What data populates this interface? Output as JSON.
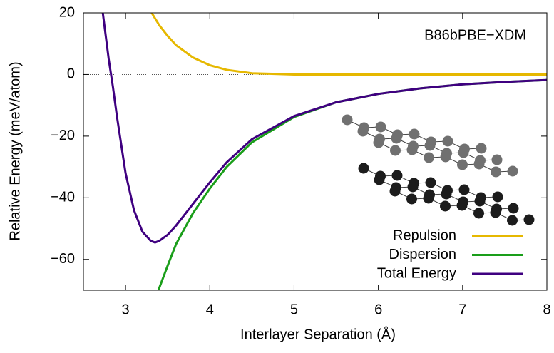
{
  "chart_data": {
    "type": "line",
    "annotation": "B86bPBE−XDM",
    "xlabel": "Interlayer Separation (Å)",
    "ylabel": "Relative Energy (meV/atom)",
    "xlim": [
      2.5,
      8
    ],
    "ylim": [
      -70,
      20
    ],
    "xticks": [
      3,
      4,
      5,
      6,
      7,
      8
    ],
    "yticks": [
      20,
      0,
      {
        "value": -20,
        "label": "−20"
      },
      {
        "value": -40,
        "label": "−40"
      },
      {
        "value": -60,
        "label": "−60"
      }
    ],
    "zero_line": true,
    "legend": "lower right",
    "series": [
      {
        "name": "Repulsion",
        "color": "#e6b800",
        "x": [
          3.31,
          3.4,
          3.5,
          3.6,
          3.8,
          4.0,
          4.2,
          4.5,
          5.0,
          5.5,
          6.0,
          6.5,
          7.0,
          7.5,
          8.0
        ],
        "values": [
          20,
          16,
          12.5,
          9.5,
          5.5,
          3,
          1.5,
          0.4,
          0,
          0,
          0,
          0,
          0,
          0,
          0
        ]
      },
      {
        "name": "Dispersion",
        "color": "#1a9e1a",
        "x": [
          3.39,
          3.5,
          3.6,
          3.8,
          4.0,
          4.2,
          4.5,
          5.0,
          5.5,
          6.0,
          6.5,
          7.0,
          7.5,
          8.0
        ],
        "values": [
          -70,
          -62,
          -55,
          -45,
          -37,
          -30,
          -22,
          -13.8,
          -9,
          -6.3,
          -4.5,
          -3.2,
          -2.4,
          -1.8
        ]
      },
      {
        "name": "Total Energy",
        "color": "#3f0080",
        "x": [
          2.73,
          2.8,
          2.85,
          2.9,
          3.0,
          3.1,
          3.2,
          3.3,
          3.35,
          3.4,
          3.5,
          3.6,
          3.8,
          4.0,
          4.2,
          4.5,
          5.0,
          5.5,
          6.0,
          6.5,
          7.0,
          7.5,
          8.0
        ],
        "values": [
          20,
          5,
          -4,
          -14,
          -32,
          -44,
          -51,
          -54,
          -54.5,
          -54,
          -52,
          -49,
          -42,
          -35,
          -28.5,
          -21,
          -13.5,
          -9,
          -6.3,
          -4.5,
          -3.2,
          -2.4,
          -1.8
        ]
      }
    ]
  }
}
